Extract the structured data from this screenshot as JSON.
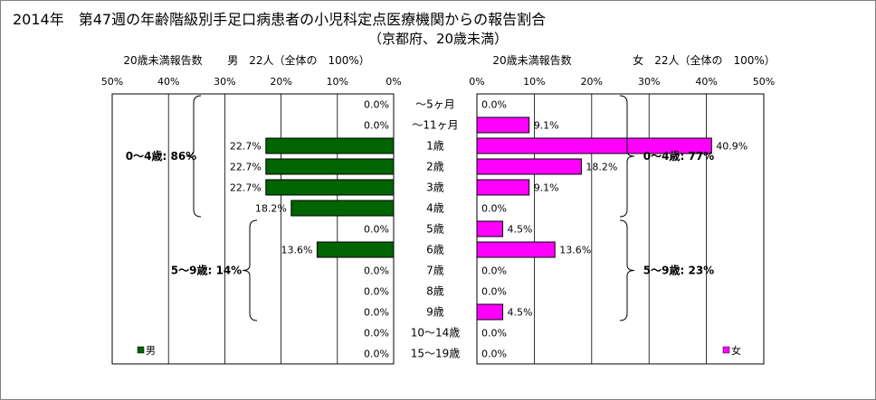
{
  "title": "2014年　第47週の年齢階級別手足口病患者の小児科定点医療機関からの報告割合",
  "subtitle": "（京都府、20歳未満）",
  "colors": {
    "male": "#006400",
    "female": "#ff00ff",
    "grid": "#000000",
    "frame": "#808080"
  },
  "chart_data": {
    "type": "bar",
    "orientation": "horizontal",
    "layout": "population-pyramid",
    "categories": [
      "～5ヶ月",
      "～11ヶ月",
      "1歳",
      "2歳",
      "3歳",
      "4歳",
      "5歳",
      "6歳",
      "7歳",
      "8歳",
      "9歳",
      "10～14歳",
      "15～19歳"
    ],
    "xlim": [
      0,
      50
    ],
    "ticks": [
      "0%",
      "10%",
      "20%",
      "30%",
      "40%",
      "50%"
    ],
    "grid": true,
    "male": {
      "header": "20歳未満報告数",
      "summary": "男　22人（全体の　100%）",
      "legend": "男",
      "values": [
        0.0,
        0.0,
        22.7,
        22.7,
        22.7,
        18.2,
        0.0,
        13.6,
        0.0,
        0.0,
        0.0,
        0.0,
        0.0
      ],
      "labels": [
        "0.0%",
        "0.0%",
        "22.7%",
        "22.7%",
        "22.7%",
        "18.2%",
        "0.0%",
        "13.6%",
        "0.0%",
        "0.0%",
        "0.0%",
        "0.0%",
        "0.0%"
      ],
      "groups": [
        {
          "label": "0～4歳: 86%",
          "from": 0,
          "to": 5
        },
        {
          "label": "5～9歳: 14%",
          "from": 6,
          "to": 10
        }
      ]
    },
    "female": {
      "header": "20歳未満報告数",
      "summary": "女　22人（全体の　100%）",
      "legend": "女",
      "values": [
        0.0,
        9.1,
        40.9,
        18.2,
        9.1,
        0.0,
        4.5,
        13.6,
        0.0,
        0.0,
        4.5,
        0.0,
        0.0
      ],
      "labels": [
        "0.0%",
        "9.1%",
        "40.9%",
        "18.2%",
        "9.1%",
        "0.0%",
        "4.5%",
        "13.6%",
        "0.0%",
        "0.0%",
        "4.5%",
        "0.0%",
        "0.0%"
      ],
      "groups": [
        {
          "label": "0～4歳: 77%",
          "from": 0,
          "to": 5
        },
        {
          "label": "5～9歳: 23%",
          "from": 6,
          "to": 10
        }
      ]
    }
  }
}
